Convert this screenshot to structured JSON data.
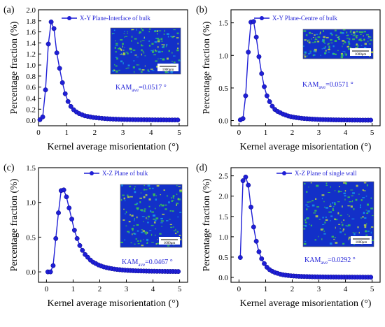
{
  "figure": {
    "xlabel": "Kernel average misorientation (°)",
    "ylabel": "Percentage fraction (%)",
    "color": "#1f1fd6",
    "inset_scale_text": "1000μm"
  },
  "chart_data": [
    {
      "type": "line",
      "panel_label": "(a)",
      "title": "",
      "xlabel": "Kernel average misorientation (°)",
      "ylabel": "Percentage fraction (%)",
      "xlim": [
        0,
        5.3
      ],
      "ylim": [
        -0.1,
        2.0
      ],
      "xticks": [
        0,
        1,
        2,
        3,
        4,
        5
      ],
      "yticks": [
        0.0,
        0.2,
        0.4,
        0.6,
        0.8,
        1.0,
        1.2,
        1.4,
        1.6,
        1.8,
        2.0
      ],
      "legend_position": "top",
      "kam_prefix": "KAM",
      "kam_sub": "ave",
      "kam_value": "=0.0517 °",
      "series": [
        {
          "name": "X-Y Plane-Interface of bulk",
          "x": [
            0.05,
            0.15,
            0.25,
            0.35,
            0.45,
            0.55,
            0.65,
            0.75,
            0.85,
            0.95,
            1.05,
            1.15,
            1.25,
            1.35,
            1.45,
            1.55,
            1.65,
            1.75,
            1.85,
            1.95,
            2.05,
            2.15,
            2.25,
            2.35,
            2.45,
            2.55,
            2.65,
            2.75,
            2.85,
            2.95,
            3.05,
            3.15,
            3.25,
            3.35,
            3.45,
            3.55,
            3.65,
            3.75,
            3.85,
            3.95,
            4.05,
            4.15,
            4.25,
            4.35,
            4.45,
            4.55,
            4.65,
            4.75,
            4.85,
            4.95
          ],
          "y": [
            0.01,
            0.06,
            0.55,
            1.38,
            1.78,
            1.66,
            1.22,
            0.94,
            0.68,
            0.48,
            0.34,
            0.25,
            0.19,
            0.15,
            0.12,
            0.1,
            0.08,
            0.07,
            0.06,
            0.05,
            0.045,
            0.04,
            0.035,
            0.03,
            0.027,
            0.024,
            0.021,
            0.019,
            0.017,
            0.015,
            0.014,
            0.013,
            0.012,
            0.011,
            0.01,
            0.01,
            0.009,
            0.009,
            0.008,
            0.008,
            0.007,
            0.007,
            0.006,
            0.006,
            0.006,
            0.005,
            0.005,
            0.005,
            0.005,
            0.005
          ]
        }
      ]
    },
    {
      "type": "line",
      "panel_label": "(b)",
      "title": "",
      "xlabel": "Kernel average misorientation (°)",
      "ylabel": "Percentage fraction (%)",
      "xlim": [
        -0.3,
        5.3
      ],
      "ylim": [
        -0.08,
        1.7
      ],
      "xticks": [
        0,
        1,
        2,
        3,
        4,
        5
      ],
      "yticks": [
        0.0,
        0.5,
        1.0,
        1.5
      ],
      "legend_position": "top",
      "kam_prefix": "KAM",
      "kam_sub": "ave",
      "kam_value": "=0.0571 °",
      "series": [
        {
          "name": "X-Y Plane-Centre of bulk",
          "x": [
            0.05,
            0.15,
            0.25,
            0.35,
            0.45,
            0.55,
            0.65,
            0.75,
            0.85,
            0.95,
            1.05,
            1.15,
            1.25,
            1.35,
            1.45,
            1.55,
            1.65,
            1.75,
            1.85,
            1.95,
            2.05,
            2.15,
            2.25,
            2.35,
            2.45,
            2.55,
            2.65,
            2.75,
            2.85,
            2.95,
            3.05,
            3.15,
            3.25,
            3.35,
            3.45,
            3.55,
            3.65,
            3.75,
            3.85,
            3.95,
            4.05,
            4.15,
            4.25,
            4.35,
            4.45,
            4.55,
            4.65,
            4.75,
            4.85,
            4.95
          ],
          "y": [
            0.01,
            0.03,
            0.38,
            1.05,
            1.51,
            1.52,
            1.28,
            0.98,
            0.72,
            0.52,
            0.38,
            0.29,
            0.22,
            0.17,
            0.14,
            0.12,
            0.1,
            0.085,
            0.07,
            0.06,
            0.052,
            0.045,
            0.04,
            0.035,
            0.031,
            0.028,
            0.025,
            0.022,
            0.02,
            0.018,
            0.016,
            0.015,
            0.014,
            0.013,
            0.012,
            0.011,
            0.01,
            0.01,
            0.009,
            0.009,
            0.008,
            0.008,
            0.007,
            0.007,
            0.007,
            0.006,
            0.006,
            0.006,
            0.006,
            0.006
          ]
        }
      ]
    },
    {
      "type": "line",
      "panel_label": "(c)",
      "title": "",
      "xlabel": "Kernel average misorientation (°)",
      "ylabel": "Percentage fraction (%)",
      "xlim": [
        -0.3,
        5.3
      ],
      "ylim": [
        -0.15,
        1.5
      ],
      "xticks": [
        0,
        1,
        2,
        3,
        4,
        5
      ],
      "yticks": [
        0.0,
        0.5,
        1.0,
        1.5
      ],
      "legend_position": "top",
      "kam_prefix": "KAM",
      "kam_sub": "ave",
      "kam_value": "=0.0467 °",
      "series": [
        {
          "name": "X-Z Plane of bulk",
          "x": [
            0.05,
            0.15,
            0.25,
            0.35,
            0.45,
            0.55,
            0.65,
            0.75,
            0.85,
            0.95,
            1.05,
            1.15,
            1.25,
            1.35,
            1.45,
            1.55,
            1.65,
            1.75,
            1.85,
            1.95,
            2.05,
            2.15,
            2.25,
            2.35,
            2.45,
            2.55,
            2.65,
            2.75,
            2.85,
            2.95,
            3.05,
            3.15,
            3.25,
            3.35,
            3.45,
            3.55,
            3.65,
            3.75,
            3.85,
            3.95,
            4.05,
            4.15,
            4.25,
            4.35,
            4.45,
            4.55,
            4.65,
            4.75,
            4.85,
            4.95
          ],
          "y": [
            0.0,
            0.0,
            0.09,
            0.48,
            0.85,
            1.17,
            1.18,
            1.08,
            0.92,
            0.76,
            0.6,
            0.48,
            0.38,
            0.31,
            0.25,
            0.21,
            0.17,
            0.14,
            0.12,
            0.1,
            0.085,
            0.072,
            0.062,
            0.053,
            0.046,
            0.04,
            0.035,
            0.031,
            0.027,
            0.024,
            0.021,
            0.019,
            0.017,
            0.015,
            0.014,
            0.013,
            0.012,
            0.011,
            0.01,
            0.009,
            0.009,
            0.008,
            0.008,
            0.007,
            0.007,
            0.006,
            0.006,
            0.006,
            0.005,
            0.005
          ]
        }
      ]
    },
    {
      "type": "line",
      "panel_label": "(d)",
      "title": "",
      "xlabel": "Kernel average misorientation (°)",
      "ylabel": "Percentage fraction (%)",
      "xlim": [
        -0.3,
        5.3
      ],
      "ylim": [
        -0.12,
        2.7
      ],
      "xticks": [
        0,
        1,
        2,
        3,
        4,
        5
      ],
      "yticks": [
        0.0,
        0.5,
        1.0,
        1.5,
        2.0,
        2.5
      ],
      "legend_position": "top",
      "kam_prefix": "KAM",
      "kam_sub": "ave",
      "kam_value": "=0.0292 °",
      "series": [
        {
          "name": "X-Z Plane of single wall",
          "x": [
            0.05,
            0.15,
            0.25,
            0.35,
            0.45,
            0.55,
            0.65,
            0.75,
            0.85,
            0.95,
            1.05,
            1.15,
            1.25,
            1.35,
            1.45,
            1.55,
            1.65,
            1.75,
            1.85,
            1.95,
            2.05,
            2.15,
            2.25,
            2.35,
            2.45,
            2.55,
            2.65,
            2.75,
            2.85,
            2.95,
            3.05,
            3.15,
            3.25,
            3.35,
            3.45,
            3.55,
            3.65,
            3.75,
            3.85,
            3.95,
            4.05,
            4.15,
            4.25,
            4.35,
            4.45,
            4.55,
            4.65,
            4.75,
            4.85,
            4.95
          ],
          "y": [
            0.49,
            2.38,
            2.47,
            2.27,
            1.73,
            1.24,
            0.89,
            0.63,
            0.46,
            0.34,
            0.25,
            0.19,
            0.15,
            0.12,
            0.1,
            0.08,
            0.065,
            0.055,
            0.047,
            0.04,
            0.035,
            0.031,
            0.027,
            0.024,
            0.022,
            0.02,
            0.018,
            0.016,
            0.015,
            0.014,
            0.013,
            0.012,
            0.011,
            0.01,
            0.01,
            0.009,
            0.009,
            0.008,
            0.008,
            0.008,
            0.007,
            0.007,
            0.007,
            0.006,
            0.006,
            0.006,
            0.006,
            0.005,
            0.005,
            0.005
          ]
        }
      ]
    }
  ]
}
